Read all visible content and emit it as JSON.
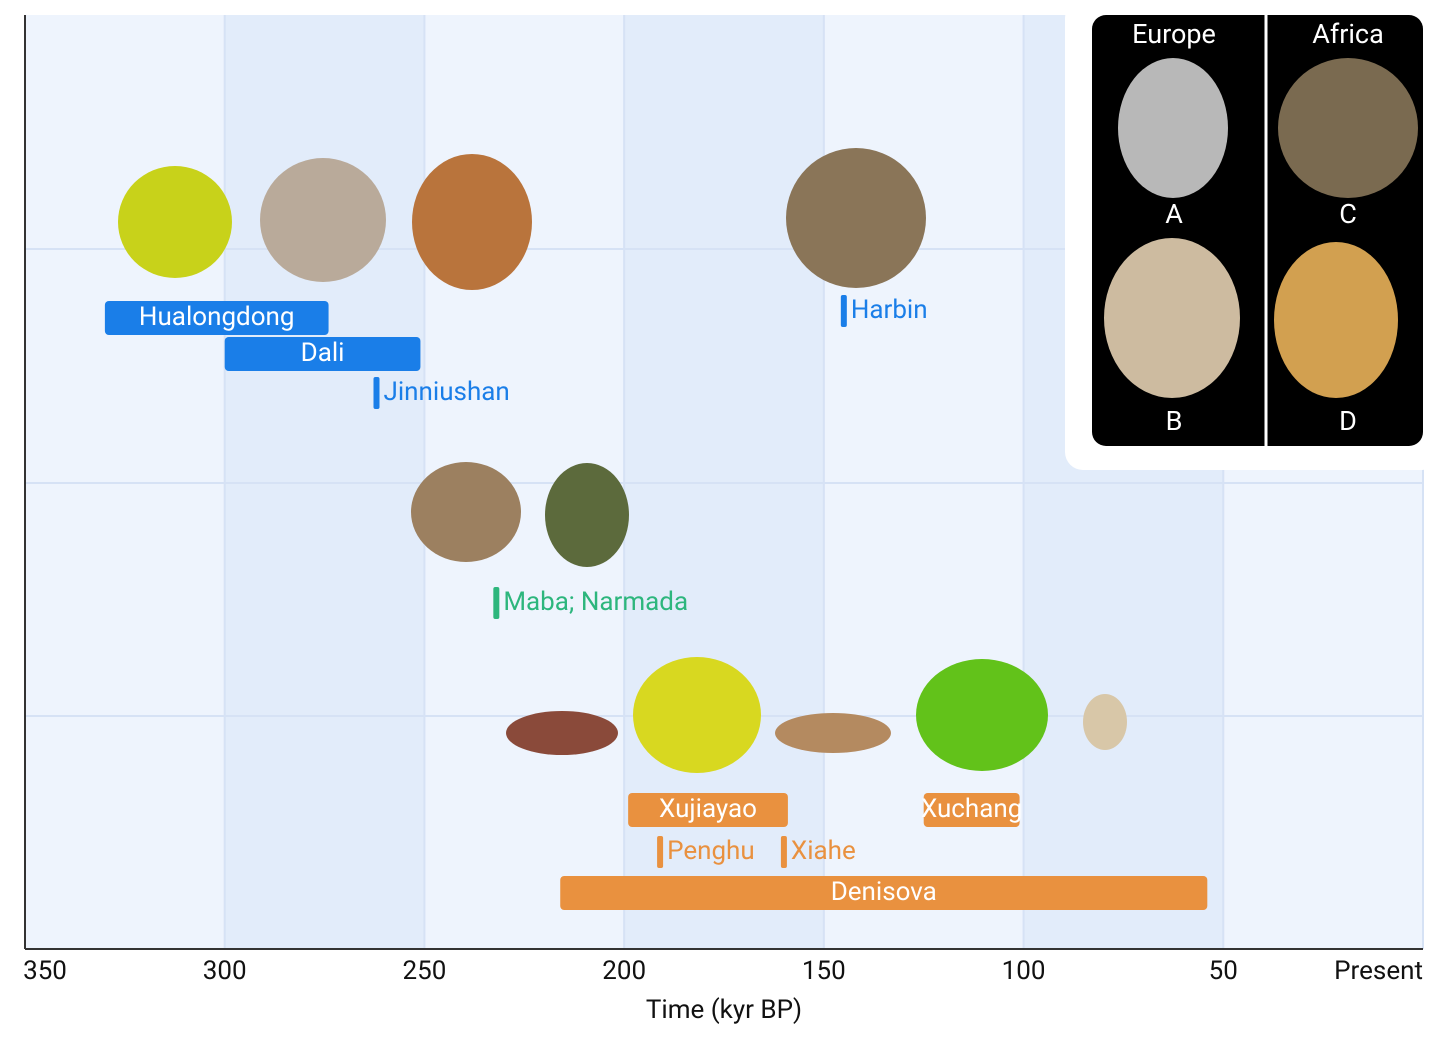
{
  "chart_data": {
    "type": "timeline",
    "xlabel": "Time (kyr BP)",
    "xlim": [
      350,
      0
    ],
    "xticks": [
      350,
      300,
      250,
      200,
      150,
      100,
      50,
      {
        "value": 0,
        "label": "Present"
      }
    ],
    "grid": true,
    "items": [
      {
        "label": "Hualongdong",
        "start": 330,
        "end": 274,
        "color": "#1a7ee8"
      },
      {
        "label": "Dali",
        "start": 300,
        "end": 251,
        "color": "#1a7ee8"
      },
      {
        "label": "Jinniushan",
        "value": 262,
        "color": "#1a7ee8"
      },
      {
        "label": "Harbin",
        "value": 145,
        "color": "#1a7ee8"
      },
      {
        "label": "Maba; Narmada",
        "value": 232,
        "color": "#2db67d"
      },
      {
        "label": "Xujiayao",
        "start": 199,
        "end": 159,
        "color": "#e9913f"
      },
      {
        "label": "Penghu",
        "value": 191,
        "color": "#e9913f"
      },
      {
        "label": "Xiahe",
        "value": 160,
        "color": "#e9913f"
      },
      {
        "label": "Xuchang",
        "start": 125,
        "end": 101,
        "color": "#e9913f"
      },
      {
        "label": "Denisova",
        "start": 216,
        "end": 54,
        "color": "#e9913f"
      }
    ],
    "inset": {
      "columns": [
        "Europe",
        "Africa"
      ],
      "labels": [
        "A",
        "B",
        "C",
        "D"
      ]
    }
  }
}
